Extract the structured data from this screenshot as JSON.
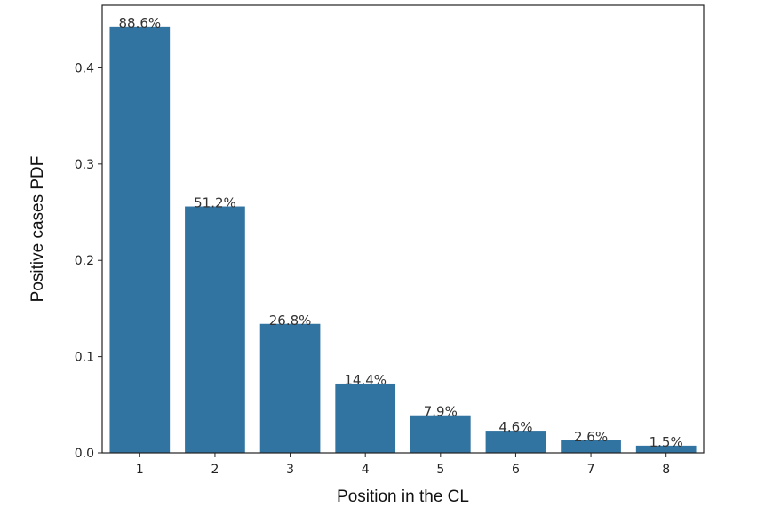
{
  "chart_data": {
    "type": "bar",
    "title": "",
    "xlabel": "Position in the CL",
    "ylabel": "Positive cases PDF",
    "categories": [
      "1",
      "2",
      "3",
      "4",
      "5",
      "6",
      "7",
      "8"
    ],
    "values": [
      0.443,
      0.256,
      0.134,
      0.072,
      0.039,
      0.023,
      0.013,
      0.0075
    ],
    "data_labels": [
      "88.6%",
      "51.2%",
      "26.8%",
      "14.4%",
      "7.9%",
      "4.6%",
      "2.6%",
      "1.5%"
    ],
    "ylim": [
      0,
      0.465
    ],
    "yticks": [
      0.0,
      0.1,
      0.2,
      0.3,
      0.4
    ],
    "ytick_labels": [
      "0.0",
      "0.1",
      "0.2",
      "0.3",
      "0.4"
    ],
    "grid": false,
    "bar_color": "#3274a1"
  }
}
